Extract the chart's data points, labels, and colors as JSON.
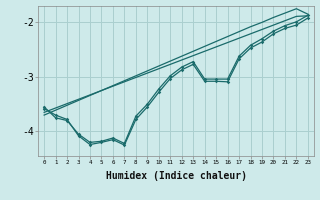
{
  "xlabel": "Humidex (Indice chaleur)",
  "background_color": "#ceeaea",
  "grid_color": "#aacfcf",
  "line_color": "#1a6b6b",
  "xlim": [
    -0.5,
    23.5
  ],
  "ylim": [
    -4.45,
    -1.7
  ],
  "yticks": [
    -4,
    -3,
    -2
  ],
  "x": [
    0,
    1,
    2,
    3,
    4,
    5,
    6,
    7,
    8,
    9,
    10,
    11,
    12,
    13,
    14,
    15,
    16,
    17,
    18,
    19,
    20,
    21,
    22,
    23
  ],
  "smooth1": [
    -3.7,
    -3.61,
    -3.52,
    -3.43,
    -3.34,
    -3.25,
    -3.16,
    -3.07,
    -2.98,
    -2.89,
    -2.8,
    -2.71,
    -2.62,
    -2.53,
    -2.44,
    -2.35,
    -2.26,
    -2.17,
    -2.08,
    -2.0,
    -1.91,
    -1.83,
    -1.75,
    -1.85
  ],
  "smooth2": [
    -3.65,
    -3.57,
    -3.49,
    -3.41,
    -3.33,
    -3.25,
    -3.17,
    -3.09,
    -3.01,
    -2.93,
    -2.85,
    -2.77,
    -2.69,
    -2.61,
    -2.53,
    -2.45,
    -2.37,
    -2.29,
    -2.21,
    -2.13,
    -2.05,
    -1.97,
    -1.89,
    -1.88
  ],
  "marker1": [
    -3.55,
    -3.75,
    -3.8,
    -4.05,
    -4.2,
    -4.18,
    -4.12,
    -4.22,
    -3.72,
    -3.5,
    -3.22,
    -2.98,
    -2.82,
    -2.72,
    -3.04,
    -3.04,
    -3.04,
    -2.62,
    -2.42,
    -2.3,
    -2.16,
    -2.06,
    -1.99,
    -1.87
  ],
  "marker2": [
    -3.58,
    -3.7,
    -3.78,
    -4.08,
    -4.24,
    -4.2,
    -4.15,
    -4.25,
    -3.78,
    -3.55,
    -3.28,
    -3.03,
    -2.87,
    -2.77,
    -3.08,
    -3.08,
    -3.09,
    -2.67,
    -2.47,
    -2.36,
    -2.21,
    -2.11,
    -2.05,
    -1.92
  ]
}
